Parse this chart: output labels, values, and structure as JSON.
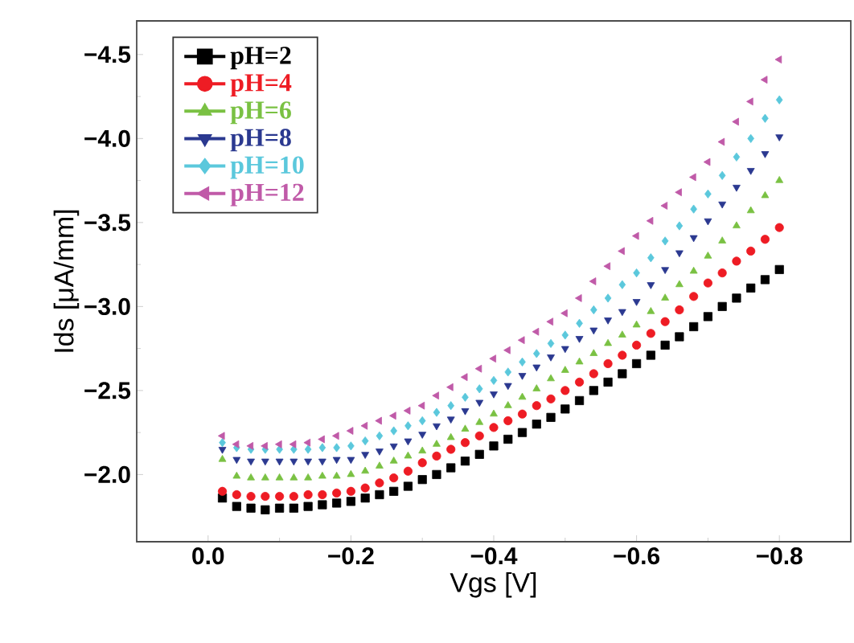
{
  "chart_data": {
    "type": "scatter",
    "xlabel": "Vgs [V]",
    "ylabel": "Ids [μA/mm]",
    "x": [
      -0.02,
      -0.04,
      -0.06,
      -0.08,
      -0.1,
      -0.12,
      -0.14,
      -0.16,
      -0.18,
      -0.2,
      -0.22,
      -0.24,
      -0.26,
      -0.28,
      -0.3,
      -0.32,
      -0.34,
      -0.36,
      -0.38,
      -0.4,
      -0.42,
      -0.44,
      -0.46,
      -0.48,
      -0.5,
      -0.52,
      -0.54,
      -0.56,
      -0.58,
      -0.6,
      -0.62,
      -0.64,
      -0.66,
      -0.68,
      -0.7,
      -0.72,
      -0.74,
      -0.76,
      -0.78,
      -0.8
    ],
    "xlim": [
      0.1,
      -0.9
    ],
    "xticks": [
      {
        "value": 0,
        "label": "0.0"
      },
      {
        "value": -0.2,
        "label": "−0.2"
      },
      {
        "value": -0.4,
        "label": "−0.4"
      },
      {
        "value": -0.6,
        "label": "−0.6"
      },
      {
        "value": -0.8,
        "label": "−0.8"
      }
    ],
    "ylim": [
      -1.6,
      -4.7
    ],
    "yticks": [
      {
        "value": -2.0,
        "label": "−2.0"
      },
      {
        "value": -2.5,
        "label": "−2.5"
      },
      {
        "value": -3.0,
        "label": "−3.0"
      },
      {
        "value": -3.5,
        "label": "−3.5"
      },
      {
        "value": -4.0,
        "label": "−4.0"
      },
      {
        "value": -4.5,
        "label": "−4.5"
      }
    ],
    "grid": false,
    "legend": "top left",
    "series": [
      {
        "name": "pH=2",
        "color": "#000000",
        "marker": "square",
        "values": [
          -1.86,
          -1.81,
          -1.8,
          -1.79,
          -1.8,
          -1.8,
          -1.81,
          -1.82,
          -1.83,
          -1.84,
          -1.86,
          -1.88,
          -1.9,
          -1.93,
          -1.97,
          -2.0,
          -2.04,
          -2.08,
          -2.12,
          -2.17,
          -2.21,
          -2.25,
          -2.3,
          -2.34,
          -2.39,
          -2.44,
          -2.5,
          -2.55,
          -2.6,
          -2.66,
          -2.71,
          -2.77,
          -2.82,
          -2.88,
          -2.94,
          -3.0,
          -3.05,
          -3.11,
          -3.16,
          -3.22
        ]
      },
      {
        "name": "pH=4",
        "color": "#ee1c24",
        "marker": "circle",
        "values": [
          -1.9,
          -1.88,
          -1.87,
          -1.87,
          -1.87,
          -1.87,
          -1.88,
          -1.88,
          -1.89,
          -1.9,
          -1.92,
          -1.95,
          -1.98,
          -2.02,
          -2.07,
          -2.11,
          -2.15,
          -2.19,
          -2.23,
          -2.28,
          -2.32,
          -2.36,
          -2.41,
          -2.45,
          -2.5,
          -2.55,
          -2.6,
          -2.66,
          -2.71,
          -2.77,
          -2.84,
          -2.91,
          -2.98,
          -3.06,
          -3.14,
          -3.2,
          -3.27,
          -3.33,
          -3.4,
          -3.47
        ]
      },
      {
        "name": "pH=6",
        "color": "#7ac143",
        "marker": "triangle",
        "values": [
          -2.09,
          -1.99,
          -1.98,
          -1.98,
          -1.98,
          -1.98,
          -1.98,
          -1.99,
          -1.99,
          -2.0,
          -2.02,
          -2.05,
          -2.08,
          -2.11,
          -2.14,
          -2.18,
          -2.22,
          -2.27,
          -2.31,
          -2.36,
          -2.41,
          -2.46,
          -2.51,
          -2.57,
          -2.62,
          -2.67,
          -2.72,
          -2.78,
          -2.83,
          -2.89,
          -2.97,
          -3.05,
          -3.13,
          -3.21,
          -3.3,
          -3.39,
          -3.48,
          -3.57,
          -3.66,
          -3.75
        ]
      },
      {
        "name": "pH=8",
        "color": "#2b3990",
        "marker": "triangle-down",
        "values": [
          -2.15,
          -2.09,
          -2.08,
          -2.08,
          -2.08,
          -2.08,
          -2.08,
          -2.08,
          -2.09,
          -2.09,
          -2.12,
          -2.14,
          -2.17,
          -2.2,
          -2.24,
          -2.29,
          -2.33,
          -2.38,
          -2.43,
          -2.48,
          -2.53,
          -2.59,
          -2.64,
          -2.7,
          -2.75,
          -2.81,
          -2.86,
          -2.92,
          -2.97,
          -3.03,
          -3.13,
          -3.22,
          -3.32,
          -3.41,
          -3.51,
          -3.61,
          -3.71,
          -3.81,
          -3.91,
          -4.01
        ]
      },
      {
        "name": "pH=10",
        "color": "#5bc8dc",
        "marker": "diamond",
        "values": [
          -2.19,
          -2.16,
          -2.15,
          -2.15,
          -2.15,
          -2.15,
          -2.15,
          -2.16,
          -2.16,
          -2.17,
          -2.2,
          -2.23,
          -2.26,
          -2.29,
          -2.32,
          -2.37,
          -2.41,
          -2.46,
          -2.51,
          -2.56,
          -2.61,
          -2.67,
          -2.72,
          -2.78,
          -2.83,
          -2.9,
          -2.98,
          -3.05,
          -3.13,
          -3.2,
          -3.29,
          -3.39,
          -3.48,
          -3.58,
          -3.67,
          -3.78,
          -3.89,
          -4.0,
          -4.12,
          -4.23
        ]
      },
      {
        "name": "pH=12",
        "color": "#c05aa8",
        "marker": "triangle-left",
        "values": [
          -2.23,
          -2.18,
          -2.17,
          -2.17,
          -2.18,
          -2.18,
          -2.19,
          -2.21,
          -2.23,
          -2.26,
          -2.29,
          -2.32,
          -2.35,
          -2.38,
          -2.41,
          -2.47,
          -2.52,
          -2.58,
          -2.63,
          -2.69,
          -2.74,
          -2.8,
          -2.85,
          -2.91,
          -2.96,
          -3.05,
          -3.15,
          -3.24,
          -3.33,
          -3.42,
          -3.51,
          -3.6,
          -3.68,
          -3.77,
          -3.86,
          -3.98,
          -4.1,
          -4.22,
          -4.35,
          -4.47
        ]
      }
    ]
  }
}
